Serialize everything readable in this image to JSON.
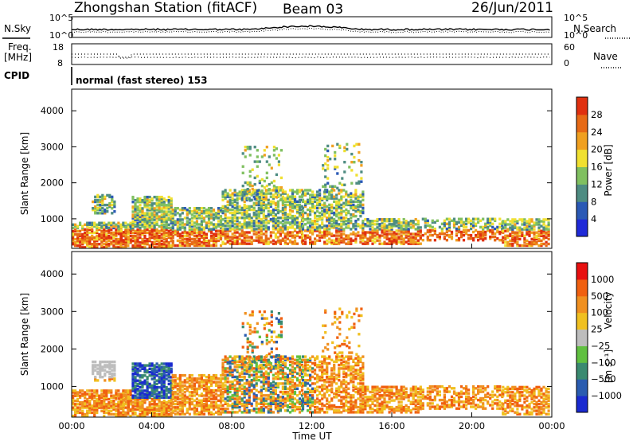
{
  "header": {
    "station": "Zhongshan Station (fitACF)",
    "beam": "Beam 03",
    "date": "26/Jun/2011"
  },
  "top_panels": {
    "left_label_1": "N.Sky",
    "left_label_2a": "Freq.",
    "left_label_2b": "[MHz]",
    "left_label_3": "CPID",
    "right_label_1": "N.Search",
    "right_label_2": "Nave",
    "noise_ticks_left": [
      "10^5",
      "10^0"
    ],
    "noise_ticks_right": [
      "10^5",
      "10^0"
    ],
    "freq_ticks": [
      "18",
      "8"
    ],
    "nave_ticks": [
      "60",
      "0"
    ],
    "cpid_text": "normal (fast stereo) 153"
  },
  "chart_data": [
    {
      "type": "heatmap",
      "name": "power",
      "ylabel": "Slant Range [km]",
      "xlabel": "",
      "x_ticks": [
        "00:00",
        "04:00",
        "08:00",
        "12:00",
        "16:00",
        "20:00",
        "00:00"
      ],
      "y_ticks": [
        1000,
        2000,
        3000,
        4000
      ],
      "ylim": [
        180,
        4600
      ],
      "xlim_hours": [
        0,
        24
      ],
      "colorbar": {
        "label": "Power [dB]",
        "ticks": [
          "4",
          "8",
          "12",
          "16",
          "20",
          "24",
          "28"
        ],
        "colors": [
          "#1f2ad8",
          "#2a59b5",
          "#4e8c82",
          "#80c060",
          "#f0e030",
          "#f0a020",
          "#e76a16",
          "#e03010"
        ]
      }
    },
    {
      "type": "heatmap",
      "name": "velocity",
      "ylabel": "Slant Range [km]",
      "xlabel": "Time UT",
      "x_ticks": [
        "00:00",
        "04:00",
        "08:00",
        "12:00",
        "16:00",
        "20:00",
        "00:00"
      ],
      "y_ticks": [
        1000,
        2000,
        3000,
        4000
      ],
      "ylim": [
        180,
        4600
      ],
      "xlim_hours": [
        0,
        24
      ],
      "colorbar": {
        "label": "Velocity",
        "label_unit": "[m s⁻¹]",
        "ticks": [
          "1000",
          "500",
          "100",
          "25",
          "−25",
          "−100",
          "−500",
          "−1000"
        ],
        "colors": [
          "#1a2ad0",
          "#2a5cb0",
          "#3a8a70",
          "#60c040",
          "#bdbdbd",
          "#f0c020",
          "#f09020",
          "#f06010",
          "#e81010"
        ]
      }
    }
  ]
}
